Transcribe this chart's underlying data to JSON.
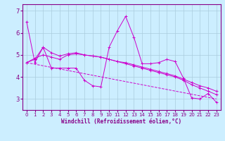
{
  "xlabel": "Windchill (Refroidissement éolien,°C)",
  "background_color": "#cceeff",
  "line_color": "#cc00cc",
  "grid_color": "#aaccdd",
  "xlim": [
    -0.5,
    23.5
  ],
  "ylim": [
    2.5,
    7.3
  ],
  "yticks": [
    3,
    4,
    5,
    6,
    7
  ],
  "xticks": [
    0,
    1,
    2,
    3,
    4,
    5,
    6,
    7,
    8,
    9,
    10,
    11,
    12,
    13,
    14,
    15,
    16,
    17,
    18,
    19,
    20,
    21,
    22,
    23
  ],
  "series": [
    {
      "x": [
        0,
        1,
        2,
        3,
        4,
        5,
        6,
        7,
        8,
        9,
        10,
        11,
        12,
        13,
        14,
        15,
        16,
        17,
        18,
        19,
        20,
        21,
        22,
        23
      ],
      "y": [
        6.5,
        4.65,
        5.35,
        4.4,
        4.4,
        4.4,
        4.4,
        3.85,
        3.6,
        3.55,
        5.35,
        6.1,
        6.75,
        5.8,
        4.6,
        4.6,
        4.65,
        4.8,
        4.7,
        3.95,
        3.05,
        3.0,
        3.25,
        2.85
      ]
    },
    {
      "x": [
        0,
        1,
        2,
        3,
        4,
        5,
        6,
        7,
        8,
        9,
        10,
        11,
        12,
        13,
        14,
        15,
        16,
        17,
        18,
        19,
        20,
        21,
        22,
        23
      ],
      "y": [
        4.65,
        4.8,
        5.35,
        5.1,
        4.95,
        5.05,
        5.1,
        5.0,
        4.95,
        4.9,
        4.8,
        4.7,
        4.65,
        4.55,
        4.45,
        4.35,
        4.25,
        4.15,
        4.05,
        3.9,
        3.75,
        3.6,
        3.5,
        3.35
      ]
    },
    {
      "x": [
        0,
        1,
        2,
        3,
        4,
        5,
        6,
        7,
        8,
        9,
        10,
        11,
        12,
        13,
        14,
        15,
        16,
        17,
        18,
        19,
        20,
        21,
        22,
        23
      ],
      "y": [
        4.65,
        4.85,
        5.0,
        4.9,
        4.8,
        5.0,
        5.05,
        5.0,
        4.95,
        4.9,
        4.8,
        4.7,
        4.6,
        4.5,
        4.4,
        4.3,
        4.2,
        4.1,
        4.0,
        3.85,
        3.65,
        3.5,
        3.35,
        3.2
      ]
    },
    {
      "x": [
        0,
        23
      ],
      "y": [
        4.65,
        3.0
      ],
      "linestyle": "--",
      "no_markers": true
    }
  ]
}
